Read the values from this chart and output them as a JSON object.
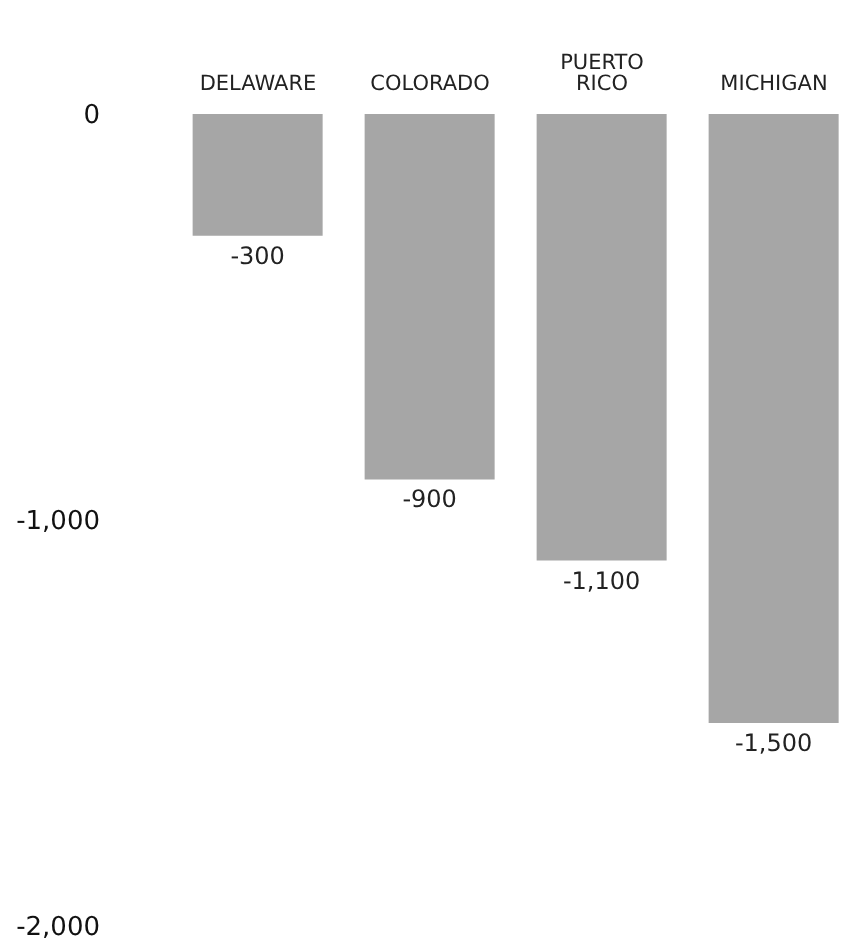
{
  "chart_data": {
    "type": "bar",
    "categories": [
      "DELAWARE",
      "COLORADO",
      "PUERTO RICO",
      "MICHIGAN"
    ],
    "values": [
      -300,
      -900,
      -1100,
      -1500
    ],
    "color": "#a6a6a6",
    "ylim": [
      -2000,
      0
    ],
    "yticks": [
      0,
      {
        "value": -1000,
        "label": "-1,000"
      },
      {
        "value": -2000,
        "label": "-2,000"
      }
    ],
    "value_labels": [
      "-300",
      "-900",
      "-1,100",
      "-1,500"
    ],
    "grid": false
  }
}
